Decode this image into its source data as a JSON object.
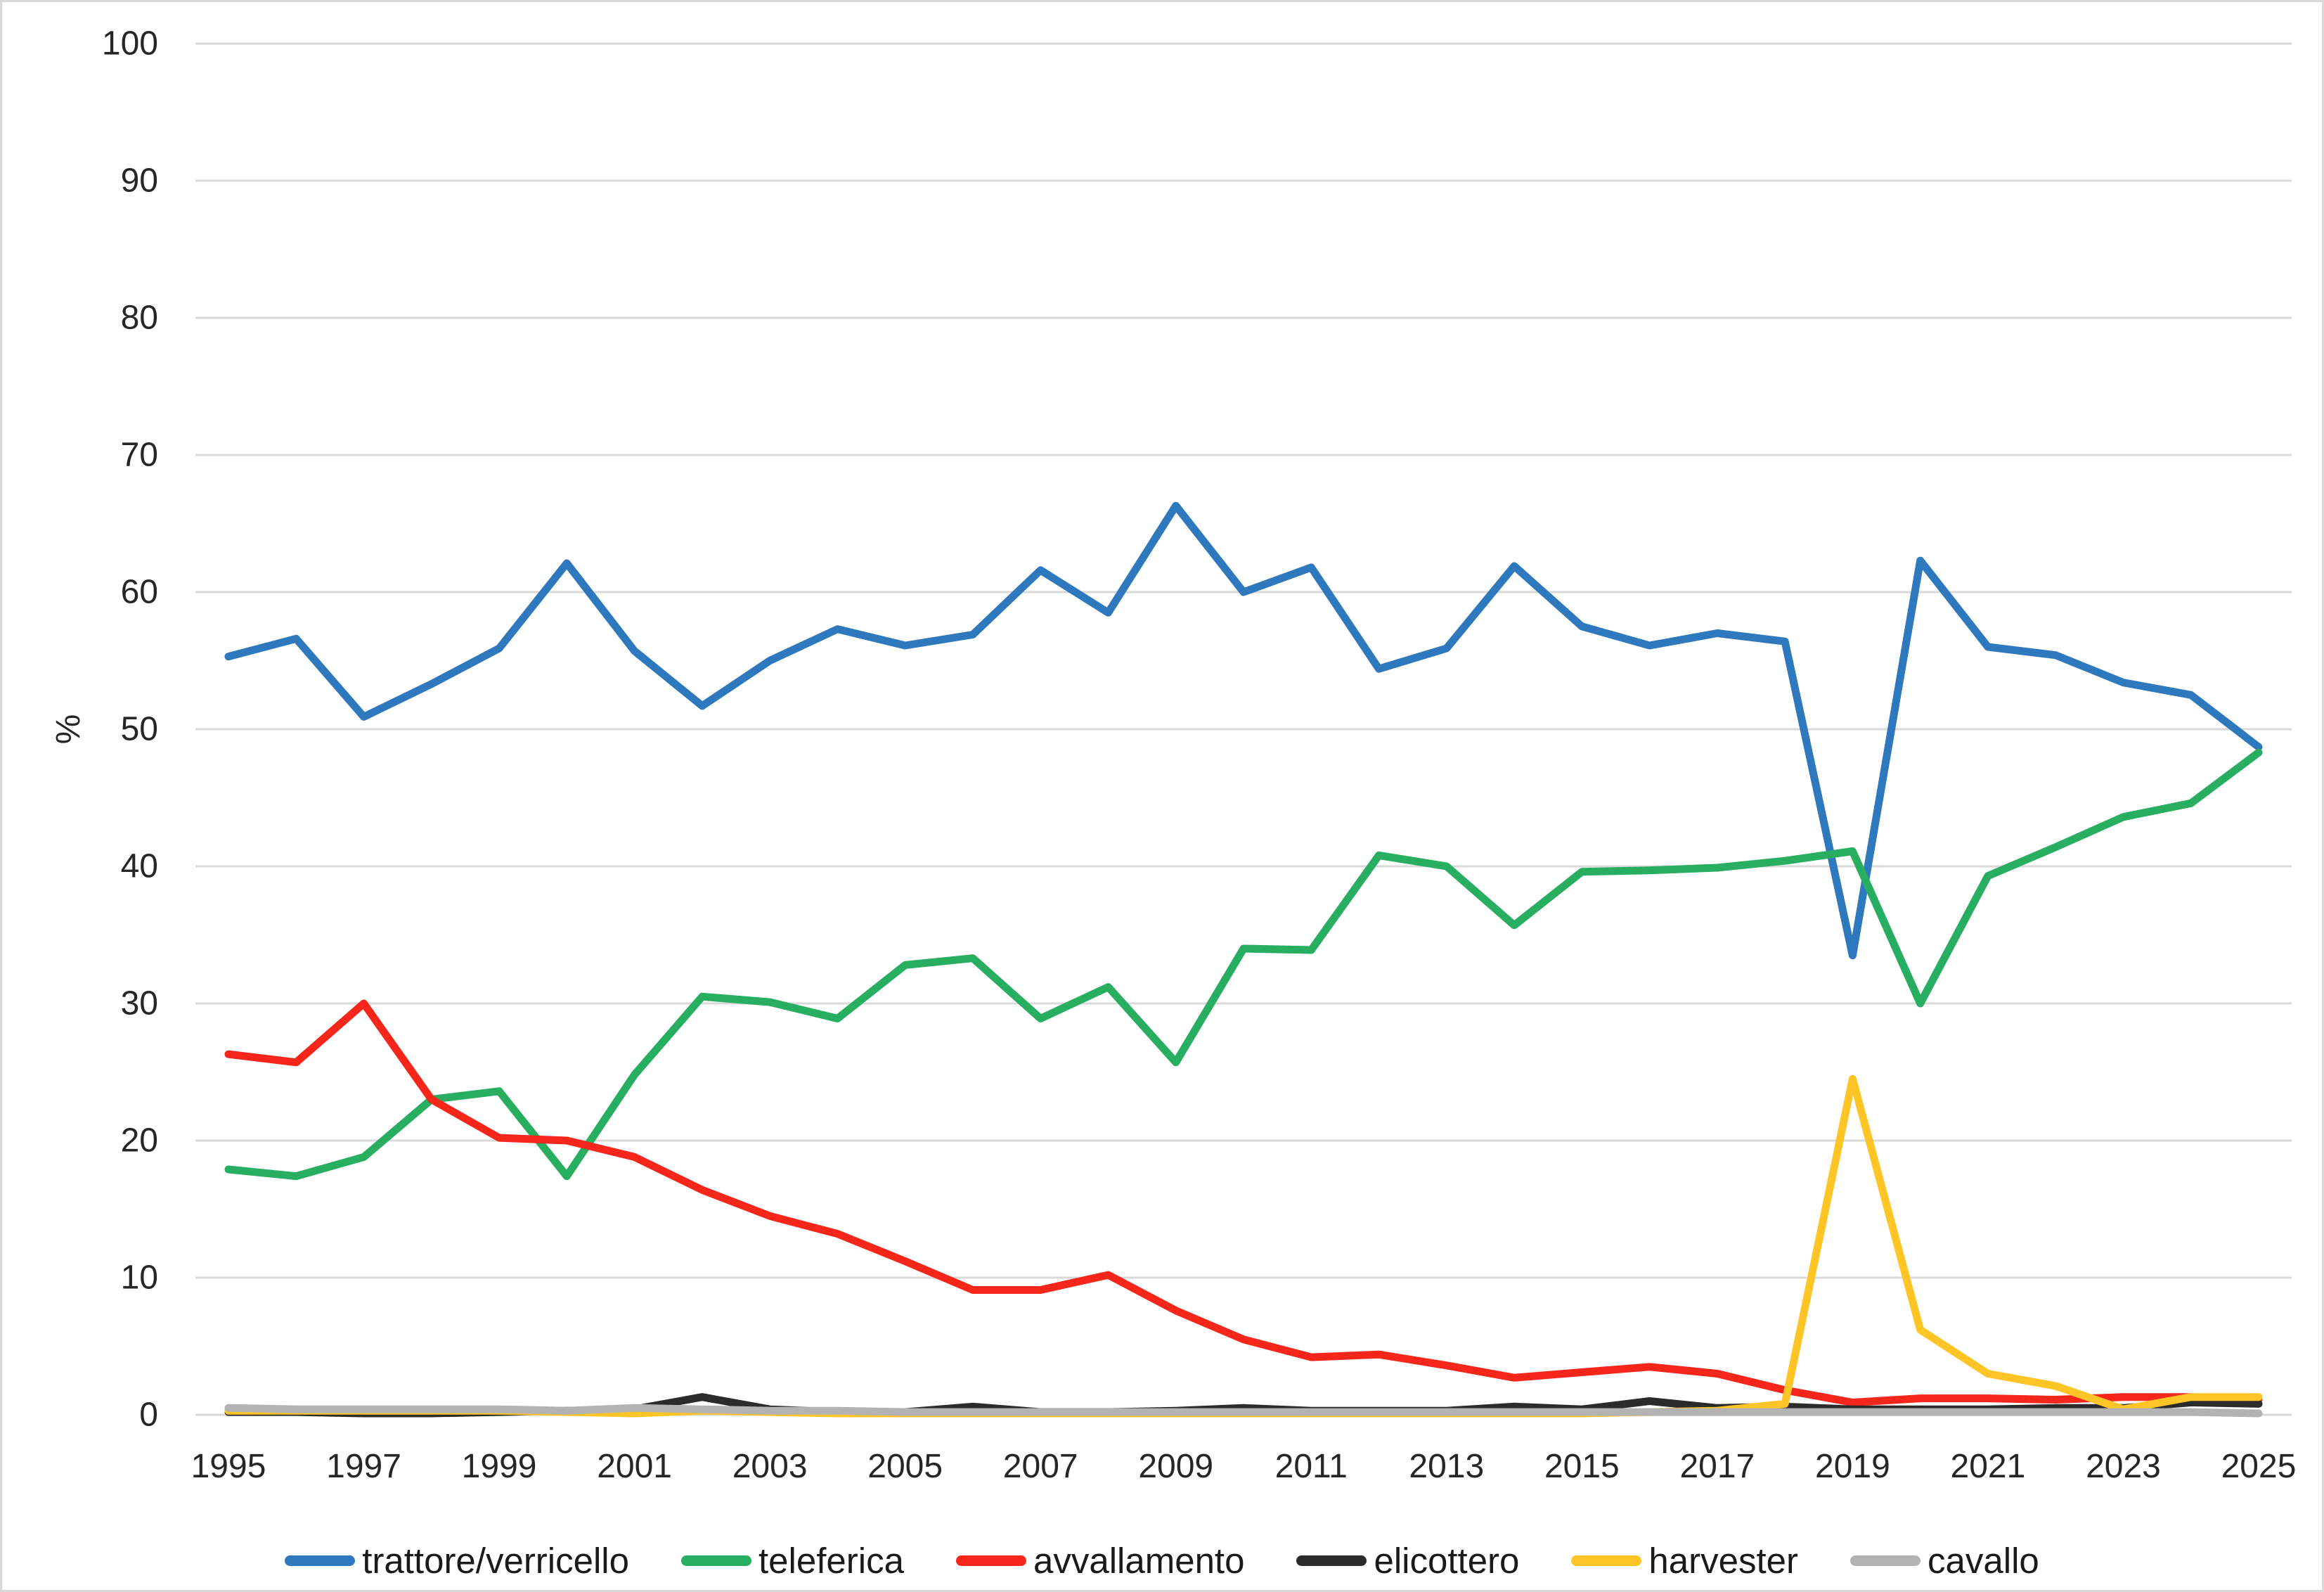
{
  "chart_data": {
    "type": "line",
    "title": "",
    "xlabel": "",
    "ylabel": "%",
    "ylim": [
      0,
      100
    ],
    "ytick_interval": 10,
    "grid": "horizontal",
    "legend_position": "bottom",
    "x": [
      1995,
      1996,
      1997,
      1998,
      1999,
      2000,
      2001,
      2002,
      2003,
      2004,
      2005,
      2006,
      2007,
      2008,
      2009,
      2010,
      2011,
      2012,
      2013,
      2014,
      2015,
      2016,
      2017,
      2018,
      2019,
      2020,
      2021,
      2022,
      2023,
      2024,
      2025
    ],
    "xtick_labels": [
      "1995",
      "1997",
      "1999",
      "2001",
      "2003",
      "2005",
      "2007",
      "2009",
      "2011",
      "2013",
      "2015",
      "2017",
      "2019",
      "2021",
      "2023",
      "2025"
    ],
    "series": [
      {
        "name": "trattore/verricello",
        "color": "#2E79BD",
        "values": [
          55.3,
          56.6,
          50.9,
          53.3,
          55.9,
          62.1,
          55.7,
          51.7,
          55.0,
          57.3,
          56.1,
          56.9,
          61.6,
          58.5,
          66.3,
          60.0,
          61.8,
          54.4,
          55.9,
          61.9,
          57.5,
          56.1,
          57.0,
          56.4,
          33.5,
          62.3,
          56.0,
          55.4,
          53.4,
          52.5,
          48.7
        ]
      },
      {
        "name": "teleferica",
        "color": "#27AE60",
        "values": [
          17.9,
          17.4,
          18.8,
          23.0,
          23.6,
          17.4,
          24.8,
          30.5,
          30.1,
          28.9,
          32.8,
          33.3,
          28.9,
          31.2,
          25.7,
          34.0,
          33.9,
          40.8,
          40.0,
          35.7,
          39.6,
          39.7,
          39.9,
          40.4,
          41.1,
          30.0,
          39.3,
          41.4,
          43.6,
          44.6,
          48.3
        ]
      },
      {
        "name": "avvallamento",
        "color": "#F6261B",
        "values": [
          26.3,
          25.7,
          30.0,
          23.0,
          20.2,
          20.0,
          18.8,
          16.4,
          14.5,
          13.2,
          11.2,
          9.1,
          9.1,
          10.2,
          7.6,
          5.5,
          4.2,
          4.4,
          3.6,
          2.7,
          3.1,
          3.5,
          3.0,
          1.8,
          0.9,
          1.2,
          1.2,
          1.1,
          1.3,
          1.3,
          1.1
        ]
      },
      {
        "name": "elicottero",
        "color": "#2B2B2B",
        "values": [
          0.2,
          0.2,
          0.1,
          0.1,
          0.2,
          0.3,
          0.4,
          1.3,
          0.4,
          0.2,
          0.2,
          0.6,
          0.2,
          0.2,
          0.3,
          0.5,
          0.3,
          0.3,
          0.3,
          0.6,
          0.4,
          1.0,
          0.5,
          0.6,
          0.4,
          0.4,
          0.4,
          0.5,
          0.5,
          0.9,
          0.8
        ]
      },
      {
        "name": "harvester",
        "color": "#FFC527",
        "values": [
          0.3,
          0.3,
          0.3,
          0.3,
          0.3,
          0.2,
          0.1,
          0.3,
          0.2,
          0.1,
          0.1,
          0.1,
          0.1,
          0.1,
          0.1,
          0.1,
          0.1,
          0.1,
          0.1,
          0.1,
          0.1,
          0.2,
          0.3,
          0.8,
          24.5,
          6.2,
          3.0,
          2.1,
          0.4,
          1.3,
          1.3
        ]
      },
      {
        "name": "cavallo",
        "color": "#B3B3B3",
        "values": [
          0.5,
          0.4,
          0.4,
          0.4,
          0.4,
          0.3,
          0.5,
          0.4,
          0.3,
          0.3,
          0.2,
          0.2,
          0.2,
          0.2,
          0.2,
          0.2,
          0.2,
          0.2,
          0.2,
          0.2,
          0.2,
          0.2,
          0.2,
          0.2,
          0.2,
          0.2,
          0.2,
          0.2,
          0.2,
          0.2,
          0.1
        ]
      }
    ]
  },
  "colors": {
    "background": "#FFFFFF",
    "gridline": "#D9D9D9",
    "border": "#D9D9D9",
    "axis_text": "#262626"
  }
}
